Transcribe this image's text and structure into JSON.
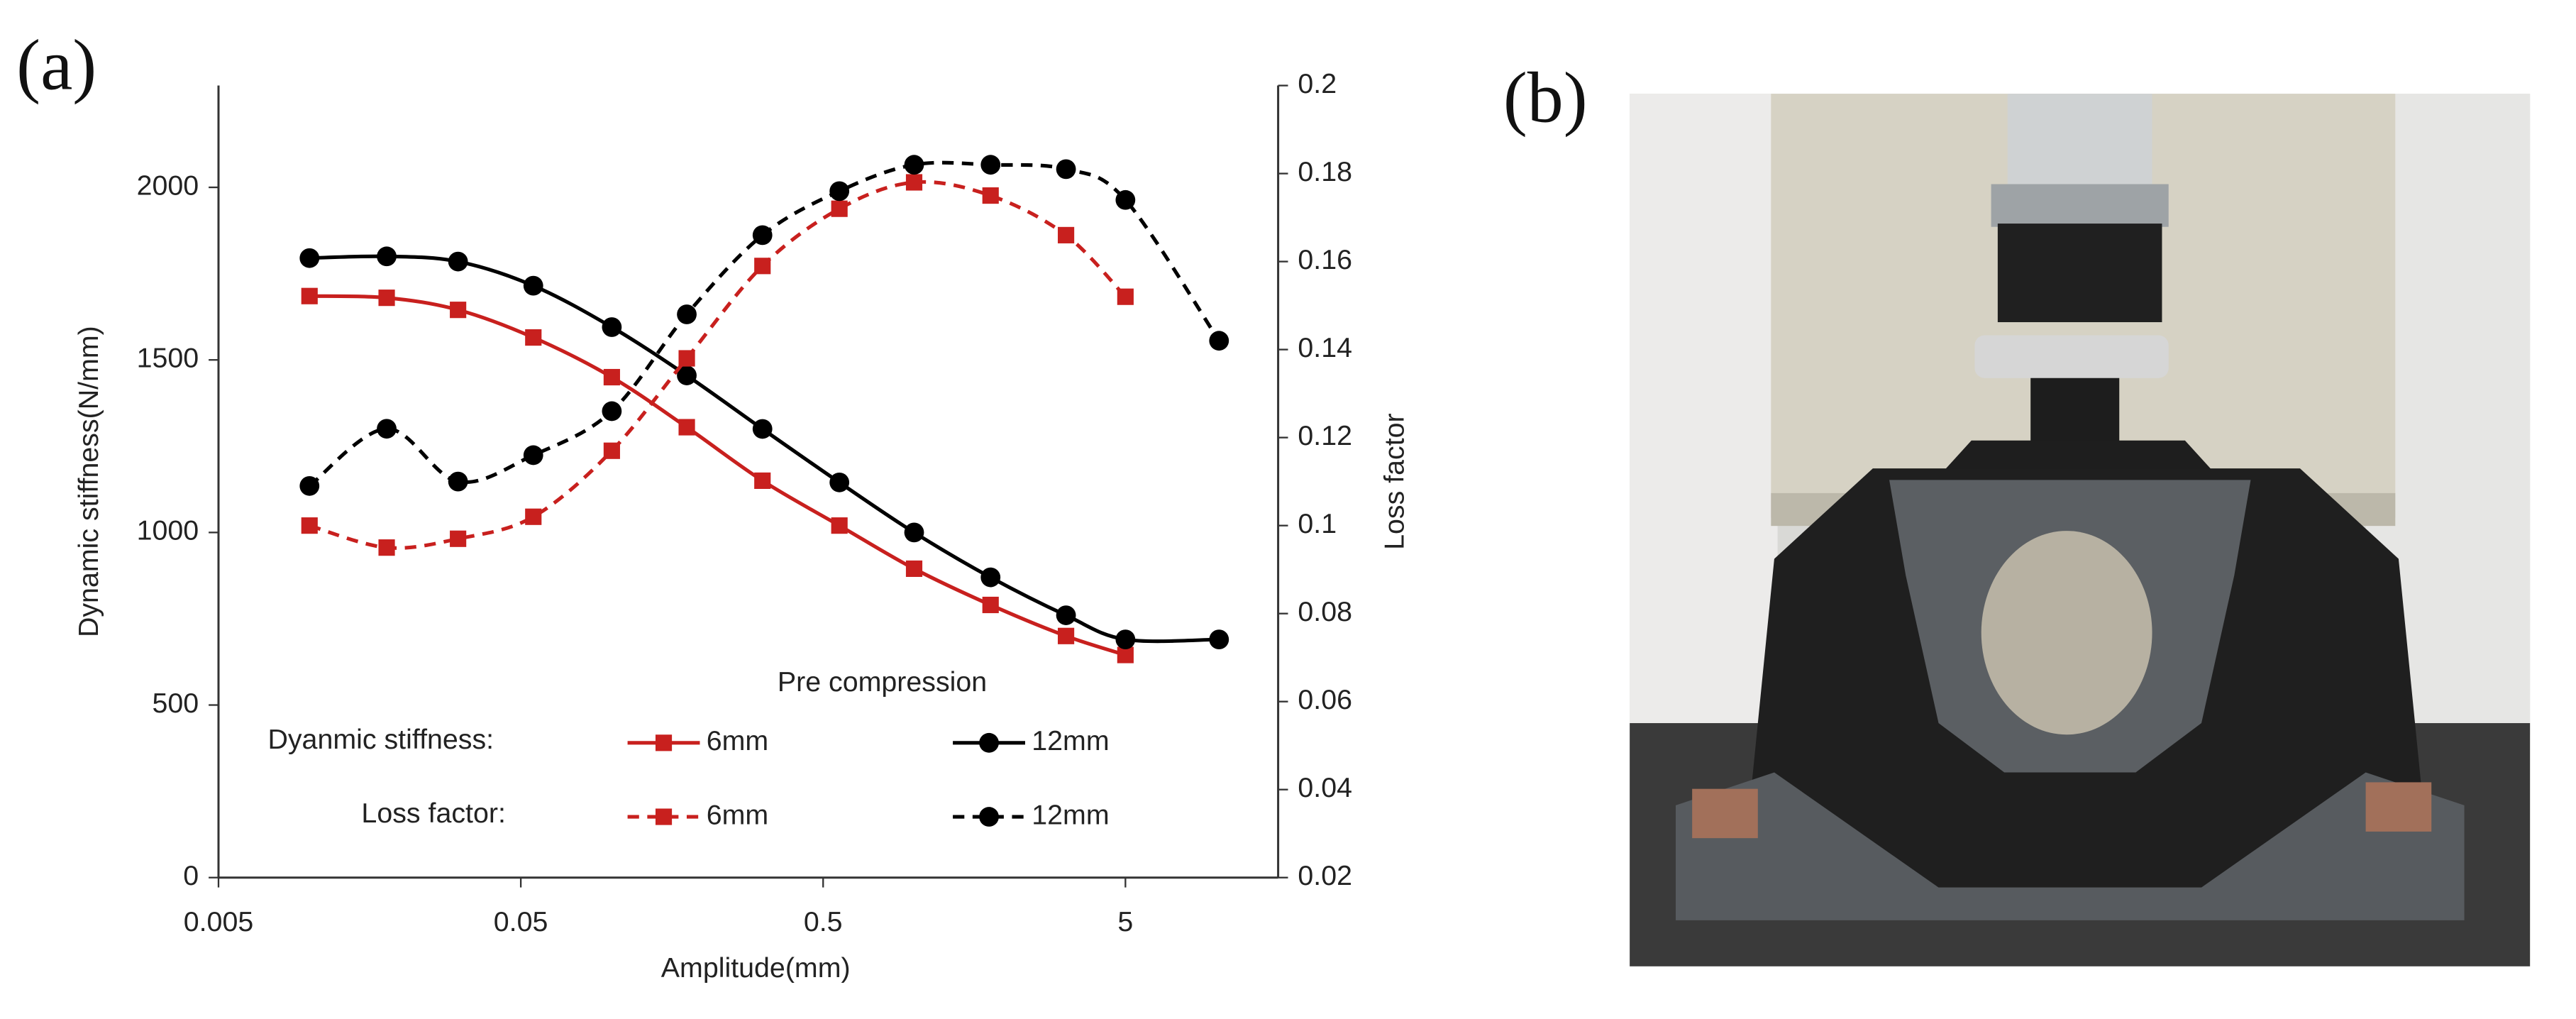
{
  "panels": {
    "a": "(a)",
    "b": "(b)"
  },
  "chart_data": {
    "type": "line",
    "x_label": "Amplitude(mm)",
    "y_label": "Dynamic stiffness(N/mm)",
    "y2_label": "Loss factor",
    "x_scale": "log",
    "xlim": [
      0.005,
      16
    ],
    "xticks": [
      0.005,
      0.05,
      0.5,
      5
    ],
    "ylim": [
      0,
      2295
    ],
    "yticks": [
      0,
      500,
      1000,
      1500,
      2000
    ],
    "y2lim": [
      0.02,
      0.2
    ],
    "y2ticks": [
      0.02,
      0.04,
      0.06,
      0.08,
      0.1,
      0.12,
      0.14,
      0.16,
      0.18,
      0.2
    ],
    "x": [
      0.01,
      0.018,
      0.031,
      0.055,
      0.1,
      0.177,
      0.315,
      0.566,
      1,
      1.79,
      3.18,
      5,
      10.2
    ],
    "legend": {
      "title": "Pre compression",
      "rows": [
        "Dyanmic stiffness:",
        "Loss factor:"
      ]
    },
    "series": [
      {
        "name": "6mm",
        "color": "#c8201e",
        "marker": "square",
        "dash": false,
        "axis": "y",
        "values": [
          1685,
          1680,
          1645,
          1565,
          1450,
          1305,
          1150,
          1020,
          895,
          790,
          700,
          645,
          null
        ]
      },
      {
        "name": "12mm",
        "color": "#000000",
        "marker": "circle",
        "dash": false,
        "axis": "y",
        "values": [
          1795,
          1800,
          1785,
          1715,
          1595,
          1455,
          1300,
          1145,
          1000,
          870,
          760,
          690,
          690
        ]
      },
      {
        "name": "6mm",
        "color": "#c8201e",
        "marker": "square",
        "dash": true,
        "axis": "y2",
        "values": [
          0.1,
          0.095,
          0.097,
          0.102,
          0.117,
          0.138,
          0.159,
          0.172,
          0.178,
          0.175,
          0.166,
          0.152,
          null
        ]
      },
      {
        "name": "12mm",
        "color": "#000000",
        "marker": "circle",
        "dash": true,
        "axis": "y2",
        "values": [
          0.109,
          0.122,
          0.11,
          0.116,
          0.126,
          0.148,
          0.166,
          0.176,
          0.182,
          0.182,
          0.181,
          0.174,
          0.142
        ]
      }
    ]
  }
}
